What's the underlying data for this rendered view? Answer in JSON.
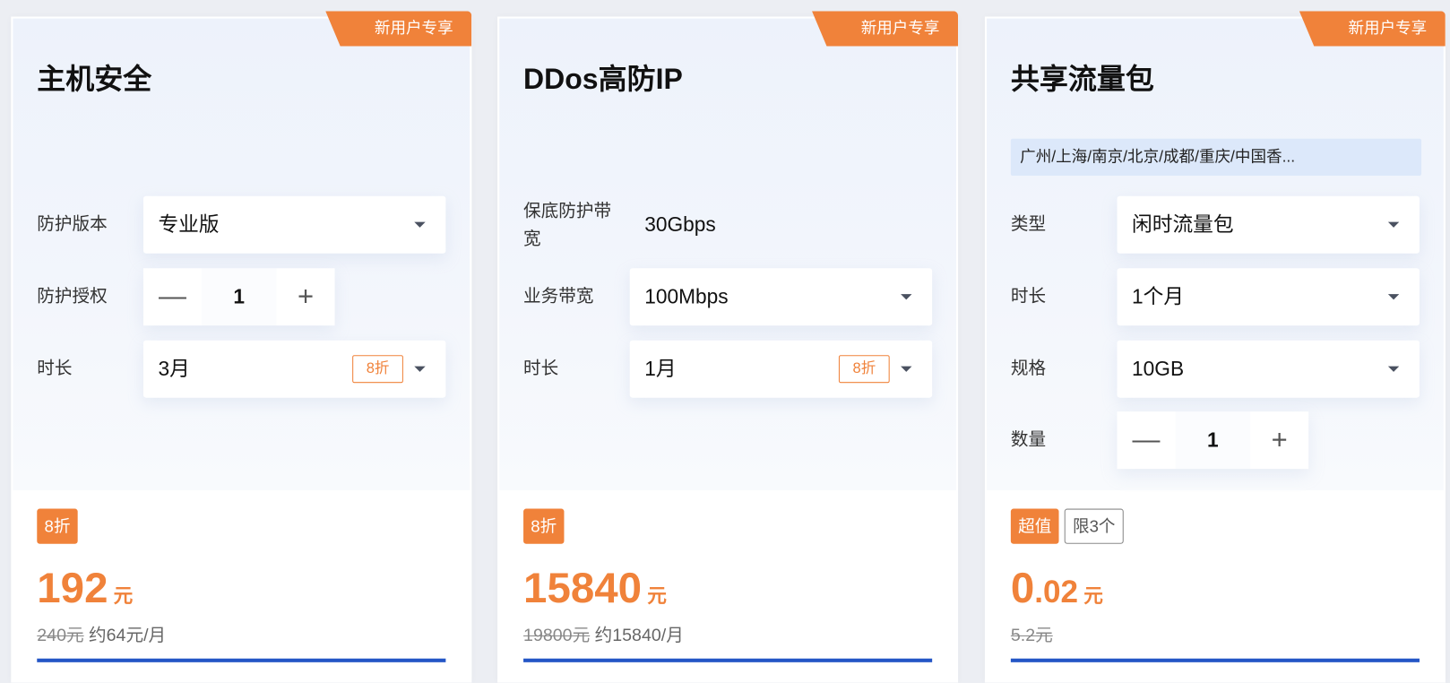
{
  "badge": "新用户专享",
  "colors": {
    "accent": "#f0823a",
    "primary": "#2456c6"
  },
  "cards": [
    {
      "title": "主机安全",
      "rows": [
        {
          "label": "防护版本",
          "value": "专业版"
        },
        {
          "label": "防护授权",
          "value": "1",
          "minus": "—",
          "plus": "+"
        },
        {
          "label": "时长",
          "value": "3月",
          "discount": "8折"
        }
      ],
      "tags": [
        "8折"
      ],
      "price": "192",
      "unit": "元",
      "original": "240元",
      "monthly": "约64元/月"
    },
    {
      "title": "DDos高防IP",
      "rows": [
        {
          "label": "保底防护带宽",
          "value": "30Gbps"
        },
        {
          "label": "业务带宽",
          "value": "100Mbps"
        },
        {
          "label": "时长",
          "value": "1月",
          "discount": "8折"
        }
      ],
      "tags": [
        "8折"
      ],
      "price": "15840",
      "unit": "元",
      "original": "19800元",
      "monthly": "约15840/月"
    },
    {
      "title": "共享流量包",
      "region": "广州/上海/南京/北京/成都/重庆/中国香...",
      "rows": [
        {
          "label": "类型",
          "value": "闲时流量包"
        },
        {
          "label": "时长",
          "value": "1个月"
        },
        {
          "label": "规格",
          "value": "10GB"
        },
        {
          "label": "数量",
          "value": "1",
          "minus": "—",
          "plus": "+"
        }
      ],
      "tags": [
        "超值",
        "限3个"
      ],
      "price_int": "0",
      "price_dec": ".02",
      "unit": "元",
      "original": "5.2元"
    }
  ]
}
